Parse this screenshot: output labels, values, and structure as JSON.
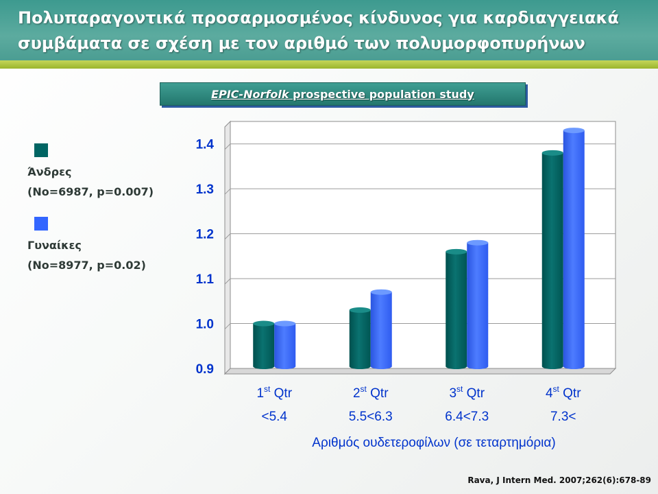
{
  "slide": {
    "title_line1": "Πολυπαραγοντικά προσαρμοσμένος κίνδυνος για καρδιαγγειακά",
    "title_line2": "συμβάματα σε σχέση με τον αριθμό των πολυμορφοπυρήνων",
    "study_label_italic": "EPIC-Norfolk",
    "study_label_rest": " prospective population study",
    "citation": "Rava, J Intern Med. 2007;262(6):678-89"
  },
  "legend": [
    {
      "name": "Άνδρες",
      "detail": "(No=6987, p=0.007)",
      "color": "#006563"
    },
    {
      "name": "Γυναίκες",
      "detail": "(No=8977, p=0.02)",
      "color": "#3366ff"
    }
  ],
  "chart_data": {
    "type": "bar",
    "categories": [
      {
        "label": "1",
        "sup": "st",
        "suffix": " Qtr",
        "range": "<5.4"
      },
      {
        "label": "2",
        "sup": "st",
        "suffix": " Qtr",
        "range": "5.5<6.3"
      },
      {
        "label": "3",
        "sup": "st",
        "suffix": " Qtr",
        "range": "6.4<7.3"
      },
      {
        "label": "4",
        "sup": "st",
        "suffix": " Qtr",
        "range": "7.3<"
      }
    ],
    "series": [
      {
        "name": "Άνδρες",
        "values": [
          1.0,
          1.03,
          1.16,
          1.38
        ],
        "color": "#006563"
      },
      {
        "name": "Γυναίκες",
        "values": [
          1.0,
          1.07,
          1.18,
          1.43
        ],
        "color": "#3366ff"
      }
    ],
    "ylim": [
      0.9,
      1.45
    ],
    "yticks": [
      "0.9",
      "1.0",
      "1.1",
      "1.2",
      "1.3",
      "1.4"
    ],
    "xlabel": "Αριθμός ουδετεροφίλων (σε τεταρτημόρια)",
    "ylabel": "",
    "grid": true
  }
}
